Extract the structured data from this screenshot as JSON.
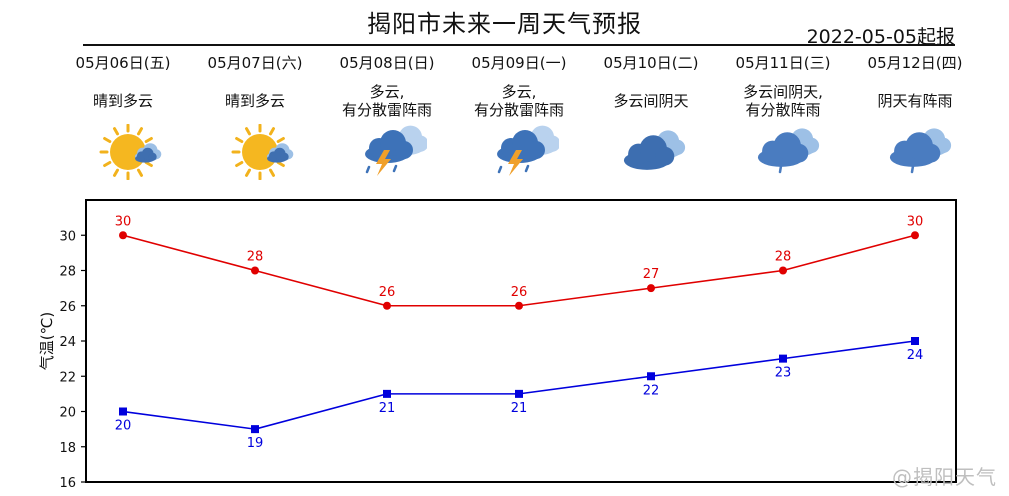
{
  "header": {
    "title": "揭阳市未来一周天气预报",
    "issue_date": "2022-05-05起报"
  },
  "days": [
    {
      "date": "05月06日(五)",
      "condition": "晴到多云",
      "icon": "sun-cloud-icon"
    },
    {
      "date": "05月07日(六)",
      "condition": "晴到多云",
      "icon": "sun-cloud-icon"
    },
    {
      "date": "05月08日(日)",
      "condition": "多云,\n有分散雷阵雨",
      "icon": "thunderstorm-icon"
    },
    {
      "date": "05月09日(一)",
      "condition": "多云,\n有分散雷阵雨",
      "icon": "thunderstorm-icon"
    },
    {
      "date": "05月10日(二)",
      "condition": "多云间阴天",
      "icon": "overcast-icon"
    },
    {
      "date": "05月11日(三)",
      "condition": "多云间阴天,\n有分散阵雨",
      "icon": "cloud-rain-icon"
    },
    {
      "date": "05月12日(四)",
      "condition": "阴天有阵雨",
      "icon": "cloud-rain-icon"
    }
  ],
  "watermark": "@揭阳天气",
  "chart_data": {
    "type": "line",
    "ylabel": "气温(℃)",
    "ylim": [
      16,
      32
    ],
    "yticks": [
      16,
      18,
      20,
      22,
      24,
      26,
      28,
      30
    ],
    "series": [
      {
        "values": [
          30,
          28,
          26,
          26,
          27,
          28,
          30
        ],
        "color": "#e00000",
        "marker": "circle"
      },
      {
        "values": [
          20,
          19,
          21,
          21,
          22,
          23,
          24
        ],
        "color": "#0000dd",
        "marker": "square"
      }
    ]
  }
}
